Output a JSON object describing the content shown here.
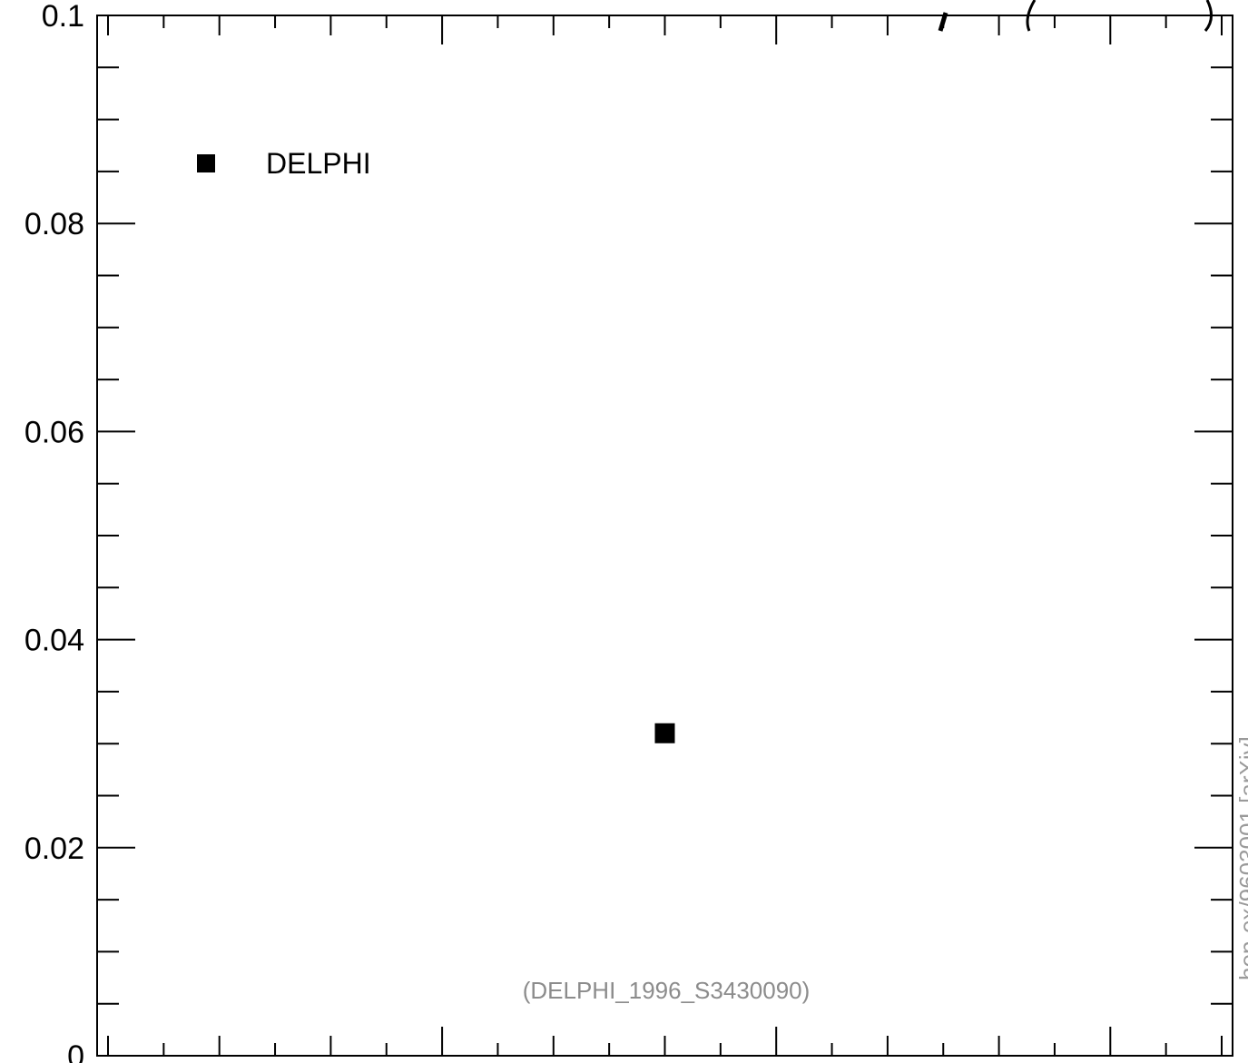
{
  "chart_data": {
    "type": "scatter",
    "ylim": [
      0,
      0.1
    ],
    "y_ticks": [
      "0",
      "0.02",
      "0.04",
      "0.06",
      "0.08",
      "0.1"
    ],
    "series": [
      {
        "name": "DELPHI",
        "marker": "filled-square",
        "color": "#000000",
        "points": [
          {
            "x": 0.5,
            "y": 0.031
          }
        ]
      }
    ],
    "legend": {
      "label": "DELPHI",
      "position": "top-left"
    },
    "annotation": "(DELPHI_1996_S3430090)",
    "side_label": "hep-ex/9603001 [arXiv]",
    "grid": false
  }
}
